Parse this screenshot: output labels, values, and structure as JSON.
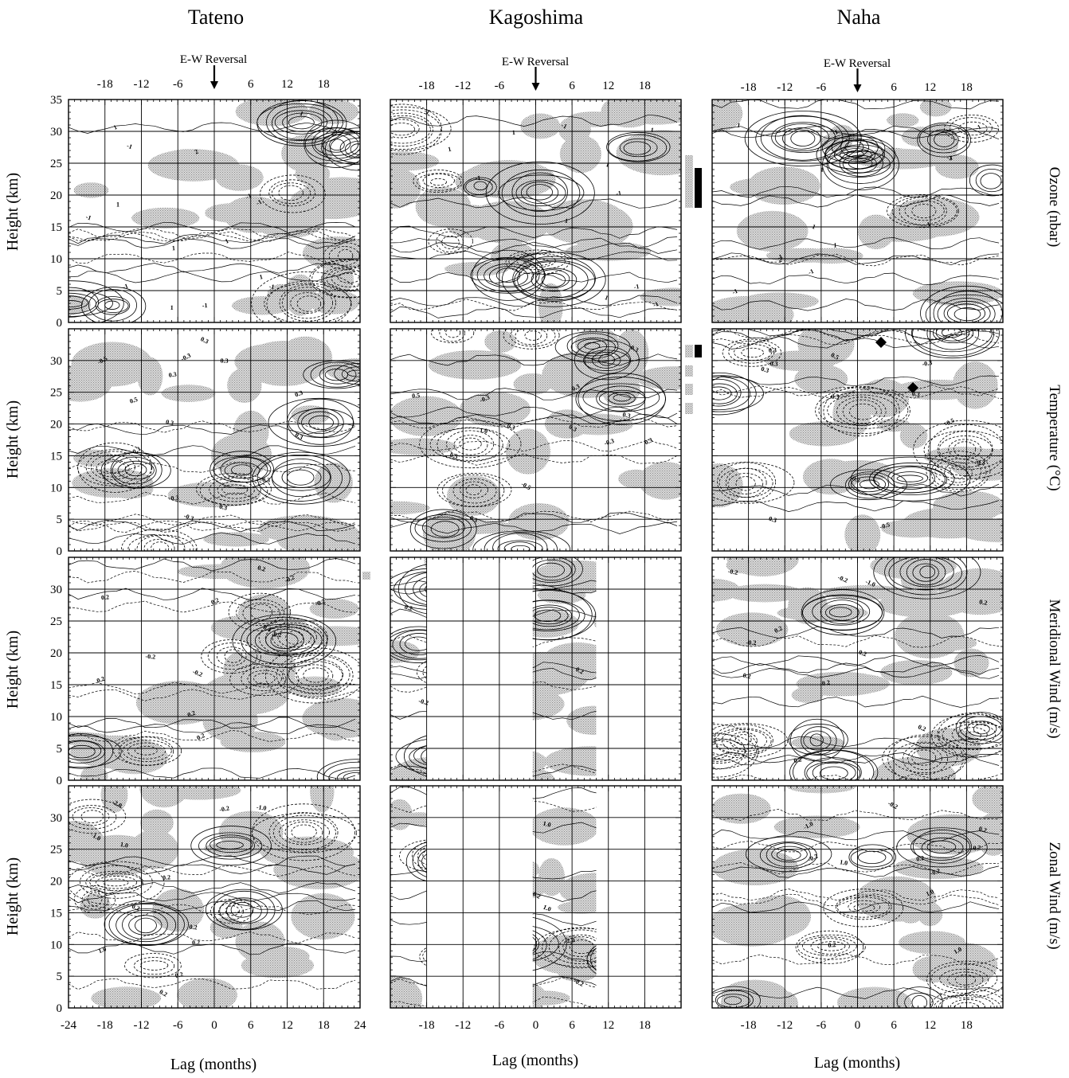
{
  "figure": {
    "stations": [
      "Tateno",
      "Kagoshima",
      "Naha"
    ],
    "reversal_label": "E-W Reversal",
    "y_axis_label": "Height (km)",
    "x_axis_label": "Lag (months)",
    "variables": [
      "Ozone (nbar)",
      "Temperature (°C)",
      "Meridional Wind (m/s)",
      "Zonal Wind (m/s)"
    ]
  },
  "chart_data": {
    "type": "heatmap",
    "description_type": "lagged composite contour panels",
    "xlim": [
      -24,
      24
    ],
    "ylim": [
      0,
      35
    ],
    "x_ticks_bottom": [
      -24,
      -18,
      -12,
      -6,
      0,
      6,
      12,
      18,
      24
    ],
    "x_ticks_top": [
      -18,
      -12,
      -6,
      0,
      6,
      12,
      18
    ],
    "y_ticks": [
      0,
      5,
      10,
      15,
      20,
      25,
      30,
      35
    ],
    "y_ticks_lower_rows": [
      0,
      5,
      10,
      15,
      20,
      25,
      30
    ],
    "grid": true,
    "reversal_lag": 0,
    "shading": "stippled gray where positive",
    "panels": [
      {
        "station": "Tateno",
        "variable": "Ozone (nbar)",
        "data_range_x": [
          -24,
          24
        ],
        "contour_labels": [
          "-1",
          "1",
          "-1",
          "1",
          "-1",
          "1",
          "1",
          "-1",
          "2",
          "-1",
          "1",
          "-1",
          "1",
          "-1",
          "1"
        ]
      },
      {
        "station": "Kagoshima",
        "variable": "Ozone (nbar)",
        "data_range_x": [
          -24,
          24
        ],
        "contour_labels": [
          "-1",
          "1",
          "-1",
          "1",
          "-1",
          "1",
          "1",
          "-1",
          "1",
          "-1",
          "1",
          "-1"
        ]
      },
      {
        "station": "Naha",
        "variable": "Ozone (nbar)",
        "data_range_x": [
          -24,
          24
        ],
        "contour_labels": [
          "-1",
          "1",
          "-1",
          "1",
          "-1",
          "1",
          "1",
          "-1",
          "2",
          "-1",
          "1",
          "-1",
          "1"
        ]
      },
      {
        "station": "Tateno",
        "variable": "Temperature (°C)",
        "data_range_x": [
          -24,
          24
        ],
        "contour_labels": [
          "0.3",
          "-0.3",
          "0.3",
          "-0.3",
          "0.3",
          "-0.5",
          "0.5",
          "-0.3",
          "0.3",
          "-0.3",
          "0.3",
          "0.3",
          "0.3",
          "0.3"
        ]
      },
      {
        "station": "Kagoshima",
        "variable": "Temperature (°C)",
        "data_range_x": [
          -24,
          24
        ],
        "contour_labels": [
          "0.3",
          "0.5",
          "1.0",
          "-0.3",
          "0.5",
          "0.3",
          "-0.5",
          "0.3",
          "-0.3",
          "0.3",
          "0.3",
          "0.3",
          "0.3"
        ]
      },
      {
        "station": "Naha",
        "variable": "Temperature (°C)",
        "data_range_x": [
          -24,
          24
        ],
        "contour_labels": [
          "0.3",
          "-0.3",
          "0.5",
          "-0.5",
          "0.3",
          "-0.3",
          "0.3",
          "-0.5",
          "0.3",
          "0.3",
          "0.3",
          "0.3"
        ]
      },
      {
        "station": "Tateno",
        "variable": "Meridional Wind (m/s)",
        "data_range_x": [
          -24,
          24
        ],
        "contour_labels": [
          "-0.2",
          "-0.2",
          "0.2",
          "-0.2",
          "0.2",
          "0.2",
          "-0.2",
          "0.2",
          "-0.2",
          "0.2",
          "-0.2",
          "0.2"
        ]
      },
      {
        "station": "Kagoshima",
        "variable": "Meridional Wind (m/s)",
        "data_range_x": [
          [
            -24,
            -18
          ],
          [
            -0.5,
            10
          ]
        ],
        "contour_labels": [
          "0.2",
          "-0.2",
          "0.2",
          "-0.2",
          "0.2",
          "-0.2",
          "0.2"
        ]
      },
      {
        "station": "Naha",
        "variable": "Meridional Wind (m/s)",
        "data_range_x": [
          -24,
          24
        ],
        "contour_labels": [
          "0.2",
          "-0.2",
          "0.2",
          "-1.0",
          "0.2",
          "-0.2",
          "0.2",
          "-0.2",
          "0.2",
          "-0.2",
          "0.2"
        ]
      },
      {
        "station": "Tateno",
        "variable": "Zonal Wind (m/s)",
        "data_range_x": [
          -24,
          24
        ],
        "contour_labels": [
          "0.2",
          "-1.0",
          "0.2",
          "1.0",
          "-2.0",
          "0.2",
          "-1.0",
          "0.2",
          "0.2",
          "1.0",
          "-0.2",
          "0.2"
        ]
      },
      {
        "station": "Kagoshima",
        "variable": "Zonal Wind (m/s)",
        "data_range_x": [
          [
            -24,
            -18
          ],
          [
            -0.5,
            10
          ]
        ],
        "contour_labels": [
          "-2.0",
          "1.0",
          "-0.2",
          "1.0",
          "-1.0",
          "0.2",
          "-0.2",
          "1.0",
          "0.2"
        ]
      },
      {
        "station": "Naha",
        "variable": "Zonal Wind (m/s)",
        "data_range_x": [
          -24,
          24
        ],
        "contour_labels": [
          "-1.0",
          "1.0",
          "-0.2",
          "0.2",
          "1.0",
          "-0.2",
          "0.2",
          "-0.2",
          "0.2",
          "1.0",
          "-0.2"
        ]
      }
    ],
    "ozone_highlight_bars": "bars at right of Kagoshima ozone panel marking ~18-25 km",
    "temperature_highlight_bars": "bars at right of Kagoshima temperature panel"
  }
}
